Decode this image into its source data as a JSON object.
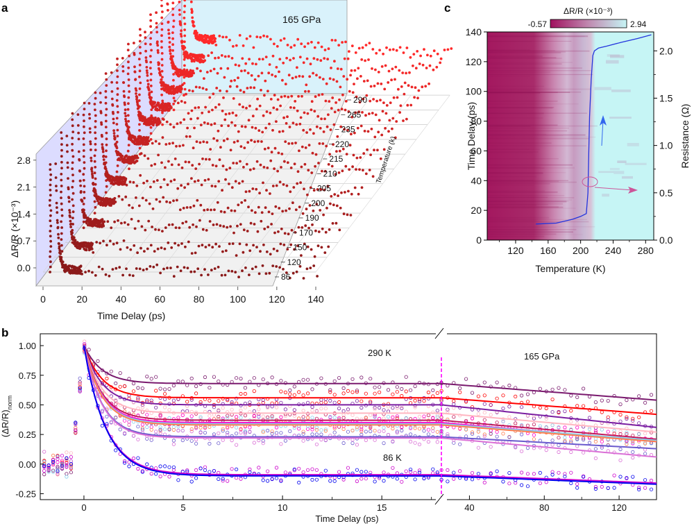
{
  "chart_data": [
    {
      "panel": "a",
      "type": "scatter",
      "title": "",
      "annotation": "165 GPa",
      "xlabel": "Time Delay (ps)",
      "ylabel": "ΔR/R (×10⁻³)",
      "zlabel": "Temperature (k)",
      "xlim": [
        0,
        140
      ],
      "ylim": [
        -0.3,
        3.0
      ],
      "x_ticks": [
        "0",
        "20",
        "40",
        "60",
        "80",
        "100",
        "120",
        "140"
      ],
      "y_ticks": [
        "0.0",
        "0.7",
        "1.4",
        "2.1",
        "2.8"
      ],
      "temperatures": [
        "86",
        "120",
        "150",
        "170",
        "190",
        "200",
        "205",
        "210",
        "215",
        "220",
        "235",
        "265",
        "290"
      ],
      "series": [
        {
          "name": "86 K",
          "peak": 2.5,
          "plateau": 0.05,
          "tail": 0.0
        },
        {
          "name": "120 K",
          "peak": 2.9,
          "plateau": 0.25,
          "tail": 0.15
        },
        {
          "name": "150 K",
          "peak": 3.0,
          "plateau": 0.45,
          "tail": 0.3
        },
        {
          "name": "170 K",
          "peak": 2.9,
          "plateau": 0.6,
          "tail": 0.4
        },
        {
          "name": "190 K",
          "peak": 2.8,
          "plateau": 0.75,
          "tail": 0.5
        },
        {
          "name": "200 K",
          "peak": 2.9,
          "plateau": 0.9,
          "tail": 0.6
        },
        {
          "name": "205 K",
          "peak": 2.9,
          "plateau": 1.0,
          "tail": 0.7
        },
        {
          "name": "210 K",
          "peak": 2.9,
          "plateau": 1.1,
          "tail": 0.8
        },
        {
          "name": "215 K",
          "peak": 2.9,
          "plateau": 1.1,
          "tail": 0.85
        },
        {
          "name": "220 K",
          "peak": 2.9,
          "plateau": 1.15,
          "tail": 0.9
        },
        {
          "name": "235 K",
          "peak": 2.9,
          "plateau": 1.2,
          "tail": 0.9
        },
        {
          "name": "265 K",
          "peak": 2.9,
          "plateau": 1.2,
          "tail": 0.95
        },
        {
          "name": "290 K",
          "peak": 2.9,
          "plateau": 1.3,
          "tail": 0.95
        }
      ],
      "colors": {
        "low_T": "#8b1a1a",
        "high_T": "#ff2a2a",
        "back_wall": "#d9f2fb",
        "side_wall": "#dcdcff",
        "floor": "#f0f0f0"
      }
    },
    {
      "panel": "b",
      "type": "line",
      "xlabel": "Time Delay (ps)",
      "ylabel": "(ΔR/R)norm",
      "ylabel_sub": "norm",
      "ylim": [
        -0.3,
        1.1
      ],
      "x_ticks_left": [
        "0",
        "5",
        "10",
        "15"
      ],
      "x_ticks_right": [
        "40",
        "80",
        "120"
      ],
      "y_ticks": [
        "1.00",
        "0.75",
        "0.50",
        "0.25",
        "0.00",
        "-0.25"
      ],
      "axis_break_at_ps": 18,
      "annotations": [
        "290 K",
        "165 GPa",
        "86 K"
      ],
      "series": [
        {
          "name": "290 K",
          "color": "#7a1a6e",
          "plateau": 0.68,
          "end": 0.54,
          "marker": "triangle-down"
        },
        {
          "name": "265 K",
          "color": "#ff0000",
          "plateau": 0.56,
          "end": 0.42,
          "marker": "circle"
        },
        {
          "name": "235 K",
          "color": "#7b1fa2",
          "plateau": 0.5,
          "end": 0.31,
          "marker": "square"
        },
        {
          "name": "220 K",
          "color": "#ffb6c1",
          "plateau": 0.43,
          "end": 0.27,
          "marker": "square"
        },
        {
          "name": "215 K",
          "color": "#c2185b",
          "plateau": 0.37,
          "end": 0.21,
          "marker": "star"
        },
        {
          "name": "210 K",
          "color": "#ff00cc",
          "plateau": 0.35,
          "end": 0.19,
          "marker": "diamond"
        },
        {
          "name": "205 K",
          "color": "#87ceeb",
          "plateau": 0.34,
          "end": 0.2,
          "marker": "circle"
        },
        {
          "name": "200 K",
          "color": "#ff7f50",
          "plateau": 0.33,
          "end": 0.19,
          "marker": "triangle-right"
        },
        {
          "name": "190 K",
          "color": "#6a5acd",
          "plateau": 0.23,
          "end": 0.13,
          "marker": "triangle-left"
        },
        {
          "name": "170 K",
          "color": "#da70d6",
          "plateau": 0.22,
          "end": 0.06,
          "marker": "triangle-down"
        },
        {
          "name": "120 K",
          "color": "#cc00cc",
          "plateau": -0.09,
          "end": -0.16,
          "marker": "diamond"
        },
        {
          "name": "86 K",
          "color": "#0000ee",
          "plateau": -0.1,
          "end": -0.17,
          "marker": "triangle-up"
        }
      ],
      "vline_color": "#ff00ff"
    },
    {
      "panel": "c",
      "type": "heatmap",
      "xlabel": "Temperature (K)",
      "ylabel": "Time Delay (ps)",
      "y2label": "Resistance (Ω)",
      "colorbar_label": "ΔR/R (×10⁻³)",
      "colorbar_min": "-0.57",
      "colorbar_max": "2.94",
      "colorbar_colors": [
        "#a0125e",
        "#c27aa6",
        "#c6f5f5"
      ],
      "xlim": [
        85,
        290
      ],
      "ylim": [
        0,
        140
      ],
      "y2lim": [
        0.0,
        2.2
      ],
      "x_ticks": [
        "120",
        "160",
        "200",
        "240",
        "280"
      ],
      "y_ticks": [
        "0",
        "20",
        "40",
        "60",
        "80",
        "100",
        "120",
        "140"
      ],
      "y2_ticks": [
        "0.0",
        "0.5",
        "1.0",
        "1.5",
        "2.0"
      ],
      "resistance_curve": {
        "T": [
          145,
          170,
          190,
          200,
          207,
          209,
          210,
          211,
          213,
          215,
          217,
          222,
          232,
          250,
          270,
          287
        ],
        "R": [
          0.17,
          0.18,
          0.22,
          0.25,
          0.28,
          0.5,
          0.9,
          1.3,
          1.7,
          1.95,
          2.0,
          2.03,
          2.05,
          2.09,
          2.13,
          2.17
        ]
      },
      "transition_T": 210,
      "curve_color": "#2233dd",
      "arrow_colors": {
        "up": "#3366ee",
        "right": "#cc5599"
      }
    }
  ]
}
